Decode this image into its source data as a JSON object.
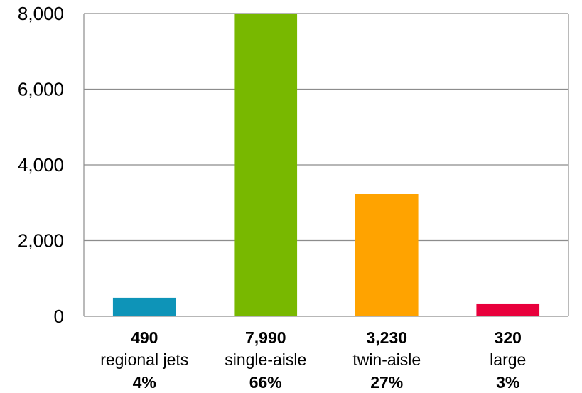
{
  "chart_data": {
    "type": "bar",
    "categories": [
      "regional jets",
      "single-aisle",
      "twin-aisle",
      "large"
    ],
    "values": [
      490,
      7990,
      3230,
      320
    ],
    "value_labels": [
      "490",
      "7,990",
      "3,230",
      "320"
    ],
    "percent_labels": [
      "4%",
      "66%",
      "27%",
      "3%"
    ],
    "colors": [
      "#0e94b8",
      "#78b800",
      "#ffa300",
      "#e8003c"
    ],
    "ylim": [
      0,
      8000
    ],
    "yticks": [
      0,
      2000,
      4000,
      6000,
      8000
    ],
    "ytick_labels": [
      "0",
      "2,000",
      "4,000",
      "6,000",
      "8,000"
    ],
    "grid": true,
    "legend": "none",
    "title": "",
    "xlabel": "",
    "ylabel": ""
  }
}
